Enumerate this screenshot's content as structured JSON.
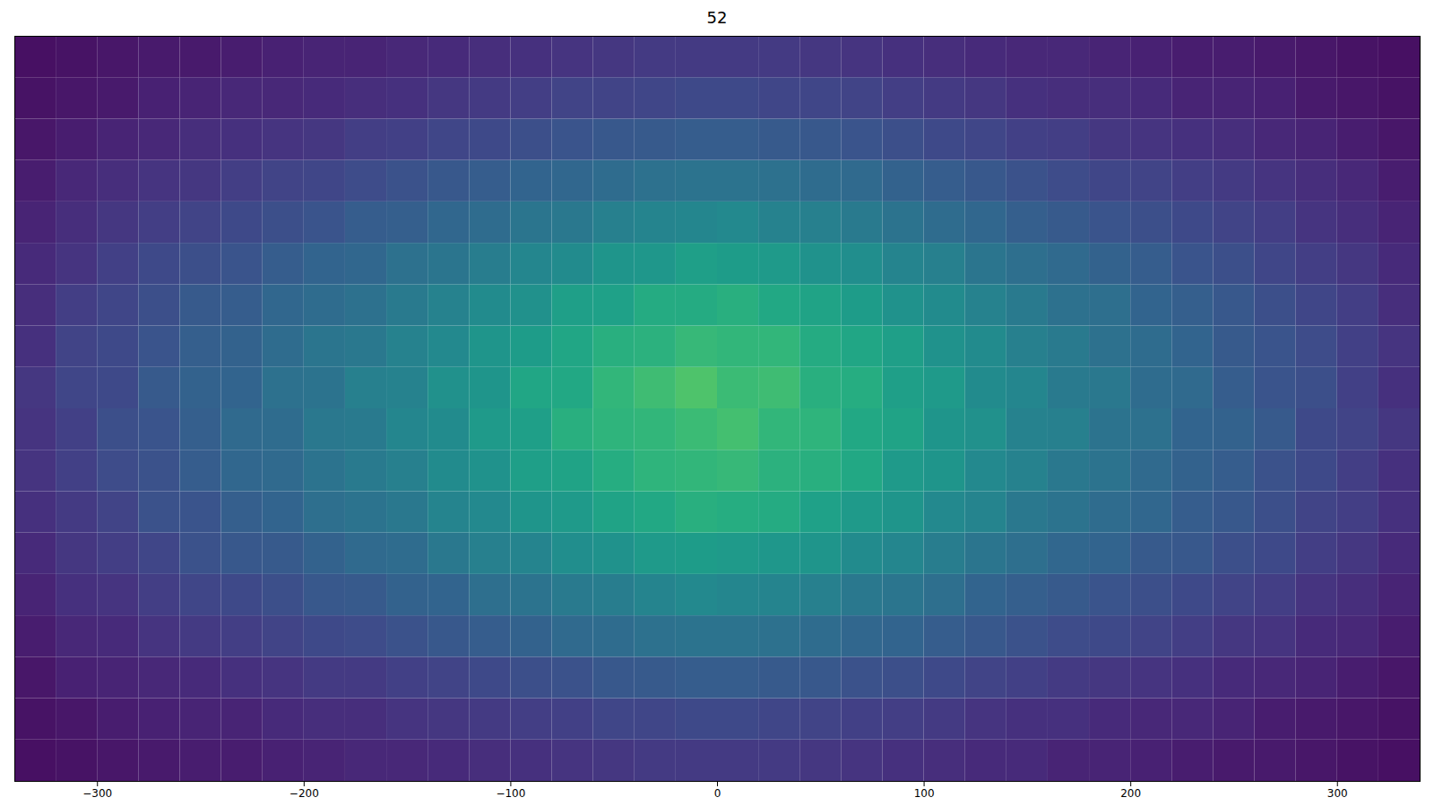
{
  "chart_data": {
    "type": "heatmap",
    "title": "52",
    "xlim": [
      -340,
      340
    ],
    "xticks": [
      -300,
      -200,
      -100,
      0,
      100,
      200,
      300
    ],
    "ylim": [
      -180,
      180
    ],
    "tick_labels": "x",
    "color": "viridis",
    "color_range": [
      0,
      10
    ],
    "x_bins": [
      -340,
      -320,
      -300,
      -280,
      -260,
      -240,
      -220,
      -200,
      -180,
      -160,
      -140,
      -120,
      -100,
      -80,
      -60,
      -40,
      -20,
      0,
      20,
      40,
      60,
      80,
      100,
      120,
      140,
      160,
      180,
      200,
      220,
      240,
      260,
      280,
      300,
      320,
      340
    ],
    "y_bins": [
      -180,
      -160,
      -140,
      -120,
      -100,
      -80,
      -60,
      -40,
      -20,
      0,
      20,
      40,
      60,
      80,
      100,
      120,
      140,
      160,
      180
    ],
    "counts": [
      [
        0.4,
        0.5,
        0.6,
        0.7,
        0.8,
        0.8,
        0.9,
        1.0,
        1.1,
        1.1,
        1.2,
        1.3,
        1.4,
        1.5,
        1.6,
        1.7,
        1.7,
        1.7,
        1.7,
        1.6,
        1.5,
        1.4,
        1.3,
        1.2,
        1.2,
        1.0,
        1.0,
        0.9,
        0.8,
        0.7,
        0.7,
        0.6,
        0.5,
        0.4
      ],
      [
        0.5,
        0.6,
        0.8,
        0.9,
        1.0,
        1.0,
        1.2,
        1.3,
        1.3,
        1.5,
        1.6,
        1.7,
        1.8,
        1.9,
        2.1,
        2.1,
        2.2,
        2.2,
        2.1,
        2.0,
        1.9,
        1.8,
        1.7,
        1.5,
        1.4,
        1.4,
        1.2,
        1.1,
        1.1,
        1.0,
        0.8,
        0.7,
        0.6,
        0.5
      ],
      [
        0.6,
        0.9,
        1.0,
        1.1,
        1.2,
        1.4,
        1.5,
        1.7,
        1.7,
        1.9,
        2.0,
        2.2,
        2.4,
        2.5,
        2.7,
        2.8,
        2.9,
        2.9,
        2.8,
        2.7,
        2.5,
        2.4,
        2.2,
        2.0,
        1.9,
        1.7,
        1.6,
        1.5,
        1.4,
        1.2,
        1.1,
        1.0,
        0.8,
        0.6
      ],
      [
        0.8,
        1.1,
        1.2,
        1.5,
        1.7,
        1.8,
        2.0,
        2.2,
        2.3,
        2.5,
        2.7,
        2.9,
        3.1,
        3.4,
        3.5,
        3.7,
        3.8,
        3.8,
        3.7,
        3.5,
        3.3,
        3.2,
        2.9,
        2.7,
        2.5,
        2.3,
        2.2,
        2.0,
        1.8,
        1.6,
        1.5,
        1.2,
        1.1,
        0.8
      ],
      [
        1.0,
        1.4,
        1.5,
        1.8,
        2.1,
        2.2,
        2.4,
        2.7,
        2.8,
        3.1,
        3.2,
        3.6,
        3.8,
        4.1,
        4.2,
        4.5,
        4.7,
        4.6,
        4.5,
        4.3,
        4.0,
        3.9,
        3.6,
        3.2,
        3.0,
        2.8,
        2.6,
        2.4,
        2.2,
        2.0,
        1.8,
        1.5,
        1.3,
        1.0
      ],
      [
        1.2,
        1.6,
        1.8,
        2.1,
        2.5,
        2.7,
        2.8,
        3.1,
        3.4,
        3.5,
        4.0,
        4.3,
        4.5,
        4.9,
        5.1,
        5.4,
        5.5,
        5.4,
        5.3,
        5.2,
        4.8,
        4.6,
        4.2,
        3.9,
        3.6,
        3.3,
        3.2,
        2.8,
        2.7,
        2.4,
        2.2,
        1.8,
        1.6,
        1.2
      ],
      [
        1.4,
        1.7,
        2.0,
        2.5,
        2.6,
        3.0,
        3.2,
        3.6,
        3.8,
        4.0,
        4.5,
        4.7,
        5.2,
        5.4,
        5.8,
        6.0,
        6.3,
        6.2,
        6.1,
        5.7,
        5.4,
        5.2,
        4.7,
        4.5,
        4.0,
        3.8,
        3.5,
        3.3,
        2.9,
        2.7,
        2.4,
        2.0,
        1.8,
        1.4
      ],
      [
        1.5,
        1.9,
        2.3,
        2.5,
        2.9,
        3.3,
        3.4,
        3.8,
        4.1,
        4.3,
        4.8,
        5.1,
        5.6,
        5.8,
        6.2,
        6.5,
        6.6,
        6.7,
        6.4,
        6.3,
        6.0,
        5.4,
        5.2,
        4.7,
        4.4,
        4.0,
        3.8,
        3.4,
        3.1,
        2.9,
        2.5,
        2.2,
        1.8,
        1.4
      ],
      [
        1.5,
        1.9,
        2.4,
        2.6,
        3.0,
        3.4,
        3.5,
        4.0,
        4.1,
        4.6,
        4.8,
        5.4,
        5.6,
        6.3,
        6.5,
        6.6,
        6.8,
        7.0,
        6.6,
        6.5,
        6.0,
        5.8,
        5.2,
        5.0,
        4.4,
        4.3,
        3.8,
        3.7,
        3.2,
        3.1,
        2.8,
        2.2,
        2.0,
        1.6
      ],
      [
        1.6,
        2.1,
        2.2,
        2.8,
        3.1,
        3.2,
        3.7,
        3.8,
        4.3,
        4.4,
        5.0,
        5.2,
        5.9,
        6.0,
        6.6,
        6.9,
        7.2,
        6.8,
        6.9,
        6.3,
        6.2,
        5.6,
        5.4,
        4.8,
        4.6,
        4.1,
        4.0,
        3.5,
        3.4,
        2.9,
        2.6,
        2.4,
        1.9,
        1.4
      ],
      [
        1.4,
        2.0,
        2.2,
        2.6,
        3.0,
        3.1,
        3.5,
        3.9,
        4.0,
        4.4,
        4.7,
        5.2,
        5.5,
        5.9,
        6.3,
        6.4,
        6.7,
        6.6,
        6.6,
        6.1,
        5.9,
        5.6,
        5.1,
        4.8,
        4.3,
        4.1,
        3.7,
        3.5,
        3.2,
        2.8,
        2.6,
        2.3,
        1.9,
        1.5
      ],
      [
        1.3,
        1.8,
        2.1,
        2.4,
        2.8,
        2.9,
        3.3,
        3.5,
        3.7,
        4.1,
        4.4,
        4.8,
        5.0,
        5.6,
        5.7,
        6.1,
        6.1,
        6.3,
        6.0,
        5.8,
        5.5,
        5.1,
        4.8,
        4.4,
        4.1,
        3.7,
        3.6,
        3.2,
        3.0,
        2.7,
        2.4,
        2.1,
        1.8,
        1.3
      ],
      [
        1.2,
        1.5,
        1.9,
        2.2,
        2.4,
        2.6,
        2.9,
        3.2,
        3.3,
        3.7,
        3.9,
        4.2,
        4.6,
        4.8,
        5.2,
        5.3,
        5.6,
        5.5,
        5.4,
        5.1,
        4.9,
        4.5,
        4.3,
        3.9,
        3.6,
        3.4,
        3.1,
        2.9,
        2.6,
        2.4,
        2.1,
        1.8,
        1.6,
        1.2
      ],
      [
        1.0,
        1.3,
        1.6,
        1.8,
        2.0,
        2.2,
        2.4,
        2.6,
        2.9,
        3.0,
        3.3,
        3.5,
        3.9,
        4.0,
        4.3,
        4.5,
        4.6,
        4.7,
        4.4,
        4.3,
        4.1,
        3.8,
        3.5,
        3.3,
        3.0,
        2.8,
        2.6,
        2.4,
        2.2,
        2.0,
        1.8,
        1.5,
        1.3,
        1.0
      ],
      [
        0.8,
        1.1,
        1.3,
        1.5,
        1.6,
        1.8,
        2.0,
        2.1,
        2.3,
        2.5,
        2.7,
        2.9,
        3.2,
        3.3,
        3.5,
        3.7,
        3.8,
        3.8,
        3.7,
        3.5,
        3.4,
        3.1,
        2.9,
        2.7,
        2.5,
        2.3,
        2.1,
        2.0,
        1.8,
        1.7,
        1.5,
        1.3,
        1.1,
        0.8
      ],
      [
        0.6,
        0.8,
        1.0,
        1.1,
        1.3,
        1.4,
        1.5,
        1.6,
        1.8,
        1.9,
        2.1,
        2.2,
        2.4,
        2.6,
        2.7,
        2.8,
        2.9,
        2.9,
        2.8,
        2.7,
        2.6,
        2.4,
        2.2,
        2.1,
        1.9,
        1.8,
        1.6,
        1.5,
        1.4,
        1.3,
        1.1,
        1.0,
        0.8,
        0.6
      ],
      [
        0.5,
        0.6,
        0.7,
        0.9,
        1.0,
        1.1,
        1.1,
        1.2,
        1.3,
        1.4,
        1.6,
        1.7,
        1.8,
        2.0,
        2.0,
        2.1,
        2.2,
        2.2,
        2.1,
        2.1,
        2.0,
        1.8,
        1.7,
        1.6,
        1.4,
        1.3,
        1.3,
        1.2,
        1.0,
        1.0,
        0.9,
        0.7,
        0.6,
        0.5
      ],
      [
        0.4,
        0.5,
        0.6,
        0.7,
        0.7,
        0.8,
        0.9,
        1.0,
        1.0,
        1.1,
        1.2,
        1.3,
        1.4,
        1.5,
        1.6,
        1.7,
        1.7,
        1.7,
        1.7,
        1.6,
        1.5,
        1.4,
        1.3,
        1.2,
        1.1,
        1.1,
        1.0,
        0.9,
        0.8,
        0.8,
        0.7,
        0.6,
        0.5,
        0.4
      ]
    ]
  }
}
